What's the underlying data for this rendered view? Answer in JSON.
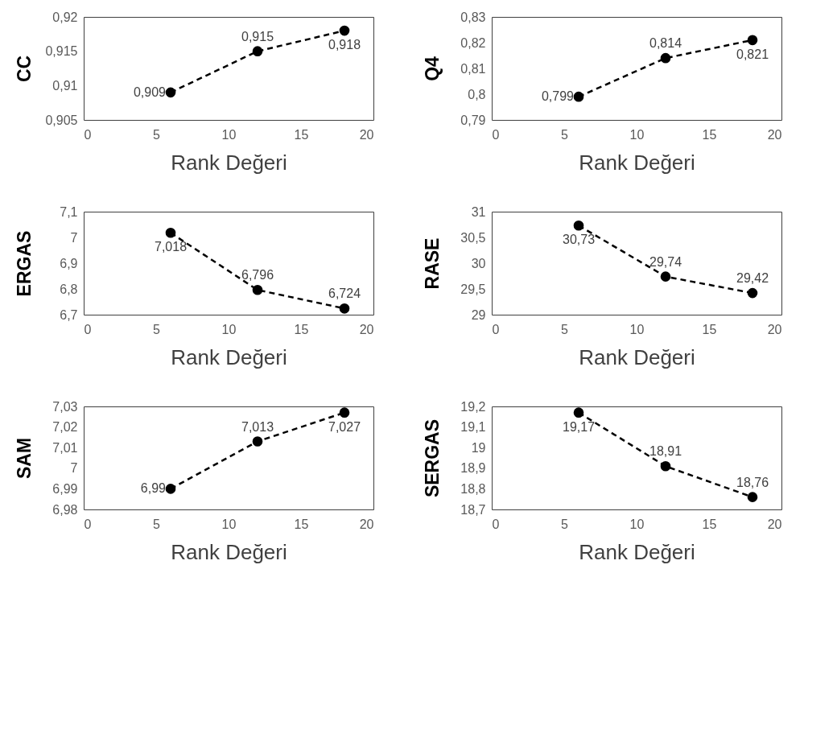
{
  "chart_data": [
    {
      "type": "line",
      "ylabel": "CC",
      "xlabel": "Rank Değeri",
      "x": [
        6,
        12,
        18
      ],
      "values": [
        0.909,
        0.915,
        0.918
      ],
      "value_labels": [
        "0,909",
        "0,915",
        "0,918"
      ],
      "color": "#000000",
      "marker": "circle",
      "line_style": "dashed",
      "xlim": [
        0,
        20
      ],
      "xticks": [
        0,
        5,
        10,
        15,
        20
      ],
      "ylim": [
        0.905,
        0.92
      ],
      "yticks": [
        {
          "value": 0.905,
          "label": "0,905"
        },
        {
          "value": 0.91,
          "label": "0,91"
        },
        {
          "value": 0.915,
          "label": "0,915"
        },
        {
          "value": 0.92,
          "label": "0,92"
        }
      ]
    },
    {
      "type": "line",
      "ylabel": "Q4",
      "xlabel": "Rank Değeri",
      "x": [
        6,
        12,
        18
      ],
      "values": [
        0.799,
        0.814,
        0.821
      ],
      "value_labels": [
        "0,799",
        "0,814",
        "0,821"
      ],
      "color": "#000000",
      "marker": "circle",
      "line_style": "dashed",
      "xlim": [
        0,
        20
      ],
      "xticks": [
        0,
        5,
        10,
        15,
        20
      ],
      "ylim": [
        0.79,
        0.83
      ],
      "yticks": [
        {
          "value": 0.79,
          "label": "0,79"
        },
        {
          "value": 0.8,
          "label": "0,8"
        },
        {
          "value": 0.81,
          "label": "0,81"
        },
        {
          "value": 0.82,
          "label": "0,82"
        },
        {
          "value": 0.83,
          "label": "0,83"
        }
      ]
    },
    {
      "type": "line",
      "ylabel": "ERGAS",
      "xlabel": "Rank Değeri",
      "x": [
        6,
        12,
        18
      ],
      "values": [
        7.018,
        6.796,
        6.724
      ],
      "value_labels": [
        "7,018",
        "6,796",
        "6,724"
      ],
      "color": "#000000",
      "marker": "circle",
      "line_style": "dashed",
      "xlim": [
        0,
        20
      ],
      "xticks": [
        0,
        5,
        10,
        15,
        20
      ],
      "ylim": [
        6.7,
        7.1
      ],
      "yticks": [
        {
          "value": 6.7,
          "label": "6,7"
        },
        {
          "value": 6.8,
          "label": "6,8"
        },
        {
          "value": 6.9,
          "label": "6,9"
        },
        7,
        {
          "value": 7.1,
          "label": "7,1"
        }
      ]
    },
    {
      "type": "line",
      "ylabel": "RASE",
      "xlabel": "Rank Değeri",
      "x": [
        6,
        12,
        18
      ],
      "values": [
        30.73,
        29.74,
        29.42
      ],
      "value_labels": [
        "30,73",
        "29,74",
        "29,42"
      ],
      "color": "#000000",
      "marker": "circle",
      "line_style": "dashed",
      "xlim": [
        0,
        20
      ],
      "xticks": [
        0,
        5,
        10,
        15,
        20
      ],
      "ylim": [
        29,
        31
      ],
      "yticks": [
        29,
        {
          "value": 29.5,
          "label": "29,5"
        },
        30,
        {
          "value": 30.5,
          "label": "30,5"
        },
        31
      ]
    },
    {
      "type": "line",
      "ylabel": "SAM",
      "xlabel": "Rank Değeri",
      "x": [
        6,
        12,
        18
      ],
      "values": [
        6.99,
        7.013,
        7.027
      ],
      "value_labels": [
        "6,99",
        "7,013",
        "7,027"
      ],
      "color": "#000000",
      "marker": "circle",
      "line_style": "dashed",
      "xlim": [
        0,
        20
      ],
      "xticks": [
        0,
        5,
        10,
        15,
        20
      ],
      "ylim": [
        6.98,
        7.03
      ],
      "yticks": [
        {
          "value": 6.98,
          "label": "6,98"
        },
        {
          "value": 6.99,
          "label": "6,99"
        },
        7,
        {
          "value": 7.01,
          "label": "7,01"
        },
        {
          "value": 7.02,
          "label": "7,02"
        },
        {
          "value": 7.03,
          "label": "7,03"
        }
      ]
    },
    {
      "type": "line",
      "ylabel": "SERGAS",
      "xlabel": "Rank Değeri",
      "x": [
        6,
        12,
        18
      ],
      "values": [
        19.17,
        18.91,
        18.76
      ],
      "value_labels": [
        "19,17",
        "18,91",
        "18,76"
      ],
      "color": "#000000",
      "marker": "circle",
      "line_style": "dashed",
      "xlim": [
        0,
        20
      ],
      "xticks": [
        0,
        5,
        10,
        15,
        20
      ],
      "ylim": [
        18.7,
        19.2
      ],
      "yticks": [
        {
          "value": 18.7,
          "label": "18,7"
        },
        {
          "value": 18.8,
          "label": "18,8"
        },
        {
          "value": 18.9,
          "label": "18,9"
        },
        19,
        {
          "value": 19.1,
          "label": "19,1"
        },
        {
          "value": 19.2,
          "label": "19,2"
        }
      ]
    }
  ]
}
